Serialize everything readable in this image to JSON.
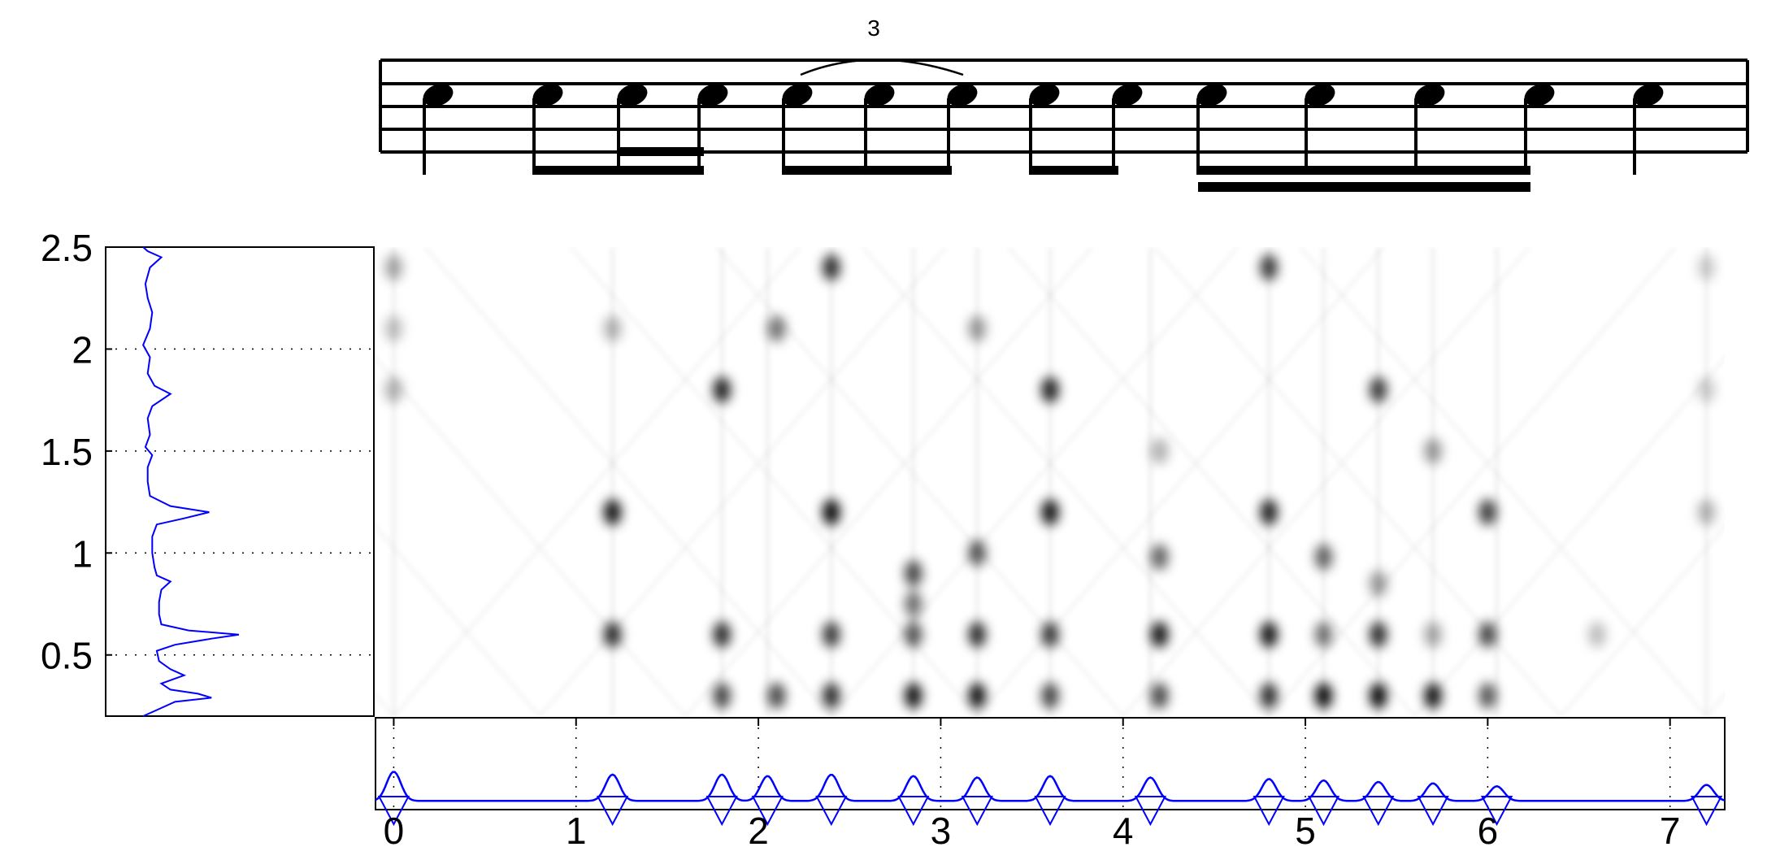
{
  "figure": {
    "tuplet_label": "3",
    "accent_color": "#0000ff"
  },
  "chart_data": [
    {
      "type": "line",
      "panel": "left-profile",
      "orientation": "vertical",
      "ylim": [
        0.2,
        2.5
      ],
      "yticks": [
        0.5,
        1,
        1.5,
        2,
        2.5
      ],
      "ytick_labels": [
        "0.5",
        "1",
        "1.5",
        "2",
        "2.5"
      ],
      "grid": "dotted",
      "series": [
        {
          "values": [
            [
              0.2,
              0.1
            ],
            [
              0.23,
              0.16
            ],
            [
              0.27,
              0.24
            ],
            [
              0.29,
              0.4
            ],
            [
              0.31,
              0.34
            ],
            [
              0.33,
              0.22
            ],
            [
              0.36,
              0.18
            ],
            [
              0.4,
              0.28
            ],
            [
              0.43,
              0.22
            ],
            [
              0.47,
              0.17
            ],
            [
              0.52,
              0.16
            ],
            [
              0.55,
              0.24
            ],
            [
              0.58,
              0.4
            ],
            [
              0.6,
              0.52
            ],
            [
              0.62,
              0.3
            ],
            [
              0.65,
              0.18
            ],
            [
              0.7,
              0.17
            ],
            [
              0.76,
              0.17
            ],
            [
              0.82,
              0.18
            ],
            [
              0.86,
              0.22
            ],
            [
              0.89,
              0.16
            ],
            [
              0.93,
              0.15
            ],
            [
              1.0,
              0.14
            ],
            [
              1.08,
              0.14
            ],
            [
              1.14,
              0.16
            ],
            [
              1.17,
              0.28
            ],
            [
              1.2,
              0.39
            ],
            [
              1.23,
              0.22
            ],
            [
              1.28,
              0.13
            ],
            [
              1.35,
              0.12
            ],
            [
              1.42,
              0.12
            ],
            [
              1.48,
              0.14
            ],
            [
              1.52,
              0.11
            ],
            [
              1.58,
              0.13
            ],
            [
              1.66,
              0.12
            ],
            [
              1.72,
              0.14
            ],
            [
              1.78,
              0.22
            ],
            [
              1.82,
              0.15
            ],
            [
              1.88,
              0.12
            ],
            [
              1.96,
              0.13
            ],
            [
              2.02,
              0.1
            ],
            [
              2.1,
              0.13
            ],
            [
              2.18,
              0.14
            ],
            [
              2.25,
              0.12
            ],
            [
              2.32,
              0.11
            ],
            [
              2.4,
              0.13
            ],
            [
              2.45,
              0.18
            ],
            [
              2.48,
              0.12
            ],
            [
              2.5,
              0.1
            ]
          ]
        }
      ]
    },
    {
      "type": "heatmap",
      "panel": "main",
      "xlim": [
        -0.1,
        7.3
      ],
      "ylim": [
        0.2,
        2.5
      ],
      "colormap": "gray-reversed",
      "dark_points": [
        [
          0.0,
          2.4,
          0.35
        ],
        [
          0.0,
          2.1,
          0.25
        ],
        [
          0.0,
          1.8,
          0.3
        ],
        [
          1.2,
          1.2,
          0.9
        ],
        [
          1.2,
          0.6,
          0.8
        ],
        [
          1.2,
          2.1,
          0.3
        ],
        [
          1.8,
          1.8,
          0.85
        ],
        [
          1.8,
          0.6,
          0.8
        ],
        [
          1.8,
          0.3,
          0.7
        ],
        [
          2.1,
          2.1,
          0.55
        ],
        [
          2.1,
          0.3,
          0.7
        ],
        [
          2.4,
          2.4,
          0.8
        ],
        [
          2.4,
          1.2,
          0.95
        ],
        [
          2.4,
          0.6,
          0.75
        ],
        [
          2.4,
          0.3,
          0.8
        ],
        [
          2.85,
          0.9,
          0.7
        ],
        [
          2.85,
          0.3,
          0.9
        ],
        [
          2.85,
          0.6,
          0.65
        ],
        [
          2.85,
          0.75,
          0.55
        ],
        [
          3.2,
          0.3,
          0.9
        ],
        [
          3.2,
          0.6,
          0.8
        ],
        [
          3.2,
          1.0,
          0.65
        ],
        [
          3.2,
          2.1,
          0.4
        ],
        [
          3.6,
          1.8,
          0.85
        ],
        [
          3.6,
          1.2,
          0.9
        ],
        [
          3.6,
          0.6,
          0.75
        ],
        [
          3.6,
          0.3,
          0.7
        ],
        [
          4.2,
          0.6,
          0.9
        ],
        [
          4.2,
          0.3,
          0.7
        ],
        [
          4.2,
          0.98,
          0.6
        ],
        [
          4.2,
          1.5,
          0.3
        ],
        [
          4.8,
          2.4,
          0.75
        ],
        [
          4.8,
          1.2,
          0.85
        ],
        [
          4.8,
          0.6,
          0.9
        ],
        [
          4.8,
          0.3,
          0.8
        ],
        [
          5.1,
          0.3,
          0.95
        ],
        [
          5.1,
          0.6,
          0.55
        ],
        [
          5.1,
          0.98,
          0.6
        ],
        [
          5.4,
          1.8,
          0.75
        ],
        [
          5.4,
          0.6,
          0.8
        ],
        [
          5.4,
          0.3,
          0.95
        ],
        [
          5.4,
          0.85,
          0.4
        ],
        [
          5.7,
          0.3,
          0.9
        ],
        [
          5.7,
          1.5,
          0.4
        ],
        [
          5.7,
          0.6,
          0.35
        ],
        [
          6.0,
          1.2,
          0.75
        ],
        [
          6.0,
          0.6,
          0.7
        ],
        [
          6.0,
          0.3,
          0.65
        ],
        [
          6.6,
          0.6,
          0.25
        ],
        [
          7.2,
          1.2,
          0.3
        ],
        [
          7.2,
          1.8,
          0.2
        ],
        [
          7.2,
          2.4,
          0.2
        ]
      ]
    },
    {
      "type": "line",
      "panel": "bottom-novelty",
      "xlim": [
        -0.1,
        7.3
      ],
      "xticks": [
        0,
        1,
        2,
        3,
        4,
        5,
        6,
        7
      ],
      "xtick_labels": [
        "0",
        "1",
        "2",
        "3",
        "4",
        "5",
        "6",
        "7"
      ],
      "grid": "dotted",
      "peaks": [
        [
          0.0,
          0.4
        ],
        [
          1.2,
          0.36
        ],
        [
          1.8,
          0.36
        ],
        [
          2.05,
          0.34
        ],
        [
          2.4,
          0.36
        ],
        [
          2.85,
          0.34
        ],
        [
          3.2,
          0.32
        ],
        [
          3.6,
          0.34
        ],
        [
          4.15,
          0.32
        ],
        [
          4.8,
          0.3
        ],
        [
          5.1,
          0.28
        ],
        [
          5.4,
          0.26
        ],
        [
          5.7,
          0.24
        ],
        [
          6.05,
          0.2
        ],
        [
          7.2,
          0.22
        ]
      ],
      "markers": [
        0.0,
        1.2,
        1.8,
        2.05,
        2.4,
        2.85,
        3.2,
        3.6,
        4.15,
        4.8,
        5.1,
        5.4,
        5.7,
        6.05,
        7.2
      ]
    }
  ]
}
